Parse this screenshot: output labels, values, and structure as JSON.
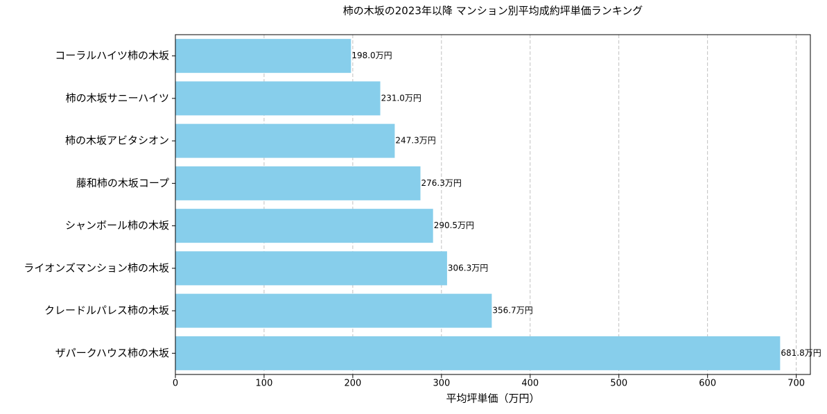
{
  "chart_data": {
    "type": "barh",
    "title": "柿の木坂の2023年以降 マンション別平均成約坪単価ランキング",
    "x_label": "平均坪単価（万円）",
    "categories": [
      "コーラルハイツ柿の木坂",
      "柿の木坂サニーハイツ",
      "柿の木坂アビタシオン",
      "藤和柿の木坂コープ",
      "シャンボール柿の木坂",
      "ライオンズマンション柿の木坂",
      "クレードルパレス柿の木坂",
      "ザパークハウス柿の木坂"
    ],
    "values": [
      198.0,
      231.0,
      247.3,
      276.3,
      290.5,
      306.3,
      356.7,
      681.8
    ],
    "value_labels": [
      "198.0万円",
      "231.0万円",
      "247.3万円",
      "276.3万円",
      "290.5万円",
      "306.3万円",
      "356.7万円",
      "681.8万円"
    ],
    "color": "#87ceeb",
    "xlim": [
      0,
      715.9
    ],
    "xticks": [
      0,
      100,
      200,
      300,
      400,
      500,
      600,
      700
    ],
    "grid": true
  }
}
